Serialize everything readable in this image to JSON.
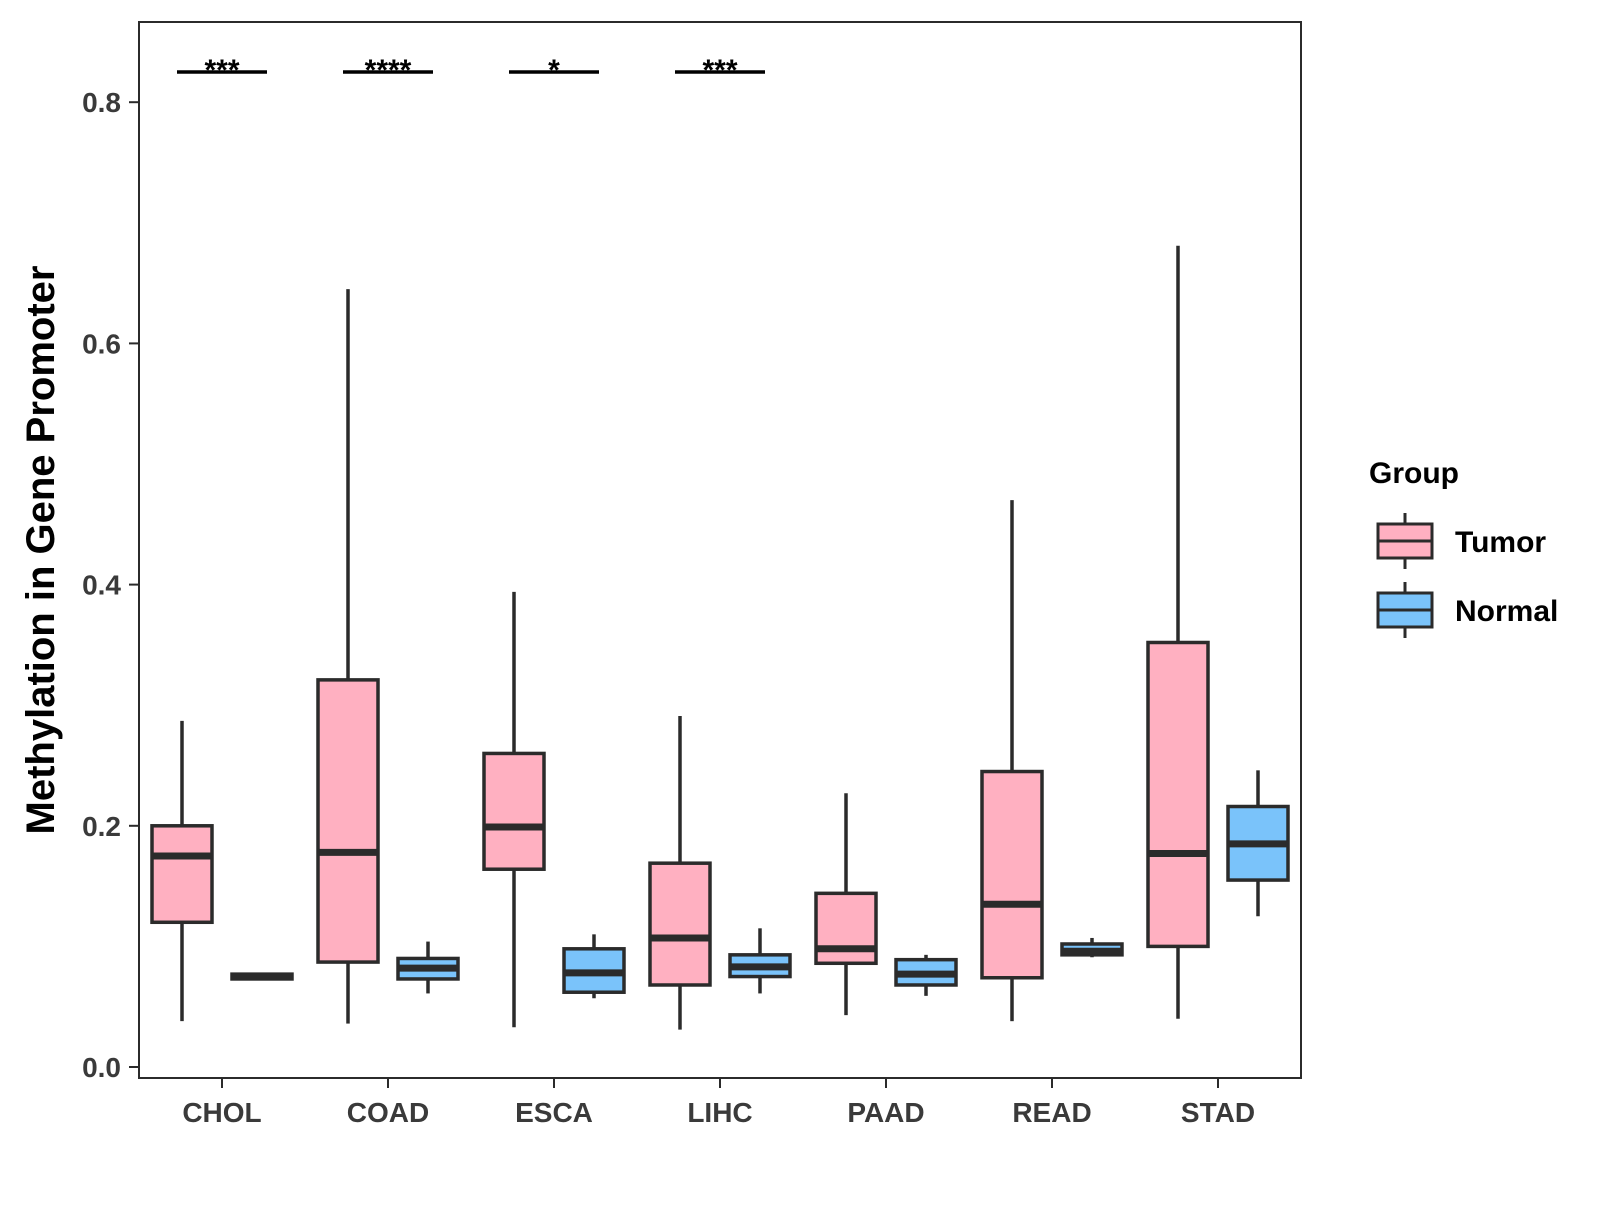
{
  "chart_data": {
    "type": "boxplot",
    "title": "",
    "xlabel": "",
    "ylabel": "Methylation in Gene Promoter",
    "ylim": [
      0,
      0.87
    ],
    "yticks": [
      "0.0",
      "0.2",
      "0.4",
      "0.6",
      "0.8"
    ],
    "ytick_values": [
      0,
      0.2,
      0.4,
      0.6,
      0.8
    ],
    "categories": [
      "CHOL",
      "COAD",
      "ESCA",
      "LIHC",
      "PAAD",
      "READ",
      "STAD"
    ],
    "legend": {
      "title": "Group",
      "position": "right",
      "entries": [
        {
          "label": "Tumor",
          "color": "#FFB0C1"
        },
        {
          "label": "Normal",
          "color": "#7AC3FA"
        }
      ]
    },
    "series": [
      {
        "name": "Tumor",
        "color": "#FFB0C1",
        "boxes": [
          {
            "min": 0.038,
            "q1": 0.12,
            "median": 0.175,
            "q3": 0.2,
            "max": 0.287
          },
          {
            "min": 0.036,
            "q1": 0.087,
            "median": 0.178,
            "q3": 0.321,
            "max": 0.645
          },
          {
            "min": 0.033,
            "q1": 0.164,
            "median": 0.199,
            "q3": 0.26,
            "max": 0.394
          },
          {
            "min": 0.031,
            "q1": 0.068,
            "median": 0.107,
            "q3": 0.169,
            "max": 0.291
          },
          {
            "min": 0.043,
            "q1": 0.086,
            "median": 0.098,
            "q3": 0.144,
            "max": 0.227
          },
          {
            "min": 0.038,
            "q1": 0.074,
            "median": 0.135,
            "q3": 0.245,
            "max": 0.47
          },
          {
            "min": 0.04,
            "q1": 0.1,
            "median": 0.177,
            "q3": 0.352,
            "max": 0.681
          }
        ]
      },
      {
        "name": "Normal",
        "color": "#7AC3FA",
        "boxes": [
          {
            "min": 0.073,
            "q1": 0.073,
            "median": 0.075,
            "q3": 0.077,
            "max": 0.077
          },
          {
            "min": 0.061,
            "q1": 0.073,
            "median": 0.082,
            "q3": 0.09,
            "max": 0.104
          },
          {
            "min": 0.057,
            "q1": 0.062,
            "median": 0.078,
            "q3": 0.098,
            "max": 0.11
          },
          {
            "min": 0.061,
            "q1": 0.075,
            "median": 0.083,
            "q3": 0.093,
            "max": 0.115
          },
          {
            "min": 0.059,
            "q1": 0.068,
            "median": 0.077,
            "q3": 0.089,
            "max": 0.093
          },
          {
            "min": 0.091,
            "q1": 0.093,
            "median": 0.096,
            "q3": 0.102,
            "max": 0.107
          },
          {
            "min": 0.125,
            "q1": 0.155,
            "median": 0.185,
            "q3": 0.216,
            "max": 0.246
          }
        ]
      }
    ],
    "significance": [
      {
        "category": "CHOL",
        "label": "***",
        "y": 0.825
      },
      {
        "category": "COAD",
        "label": "****",
        "y": 0.825
      },
      {
        "category": "ESCA",
        "label": "*",
        "y": 0.825
      },
      {
        "category": "LIHC",
        "label": "***",
        "y": 0.825
      }
    ]
  }
}
